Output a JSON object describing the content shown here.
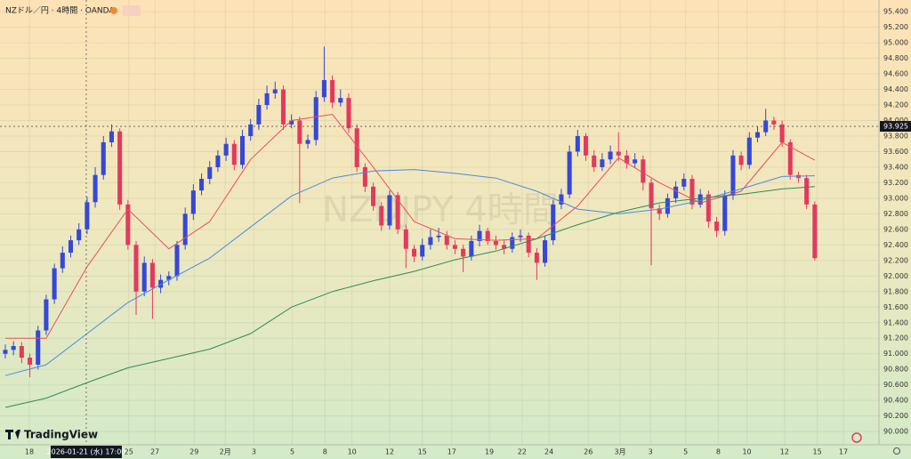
{
  "chart_data": {
    "type": "candlestick",
    "title": "NZドル／円 · 4時間 · OANDA",
    "watermark": "NZDJPY 4時間",
    "brand": "TradingView",
    "up_color": "#3548d6",
    "down_color": "#e23a5f",
    "open": [
      91.0,
      91.05,
      91.1,
      90.95,
      90.86,
      91.3,
      91.7,
      92.1,
      92.3,
      92.46,
      92.6,
      92.95,
      93.3,
      93.72,
      93.86,
      92.92,
      92.4,
      91.8,
      92.17,
      91.85,
      91.95,
      92.0,
      92.4,
      92.8,
      93.1,
      93.25,
      93.4,
      93.55,
      93.7,
      93.43,
      93.8,
      93.95,
      94.2,
      94.35,
      94.4,
      93.95,
      94.0,
      93.7,
      93.75,
      94.3,
      94.52,
      94.23,
      94.29,
      93.9,
      93.4,
      93.15,
      92.9,
      92.65,
      93.04,
      92.6,
      92.35,
      92.25,
      92.4,
      92.5,
      92.52,
      92.4,
      92.35,
      92.25,
      92.45,
      92.58,
      92.45,
      92.4,
      92.35,
      92.5,
      92.52,
      92.3,
      92.17,
      92.46,
      92.92,
      93.05,
      93.6,
      93.8,
      93.55,
      93.4,
      93.5,
      93.6,
      93.55,
      93.45,
      93.5,
      93.2,
      92.87,
      92.8,
      93.0,
      93.15,
      93.25,
      92.92,
      93.05,
      92.7,
      92.58,
      93.04,
      93.55,
      93.43,
      93.78,
      93.85,
      94.0,
      93.95,
      93.72,
      93.3,
      93.26,
      92.92
    ],
    "high": [
      91.12,
      91.16,
      91.15,
      91.0,
      91.36,
      91.76,
      92.16,
      92.38,
      92.52,
      92.68,
      93.02,
      93.4,
      93.8,
      93.95,
      93.9,
      92.98,
      92.45,
      92.25,
      92.22,
      92.02,
      92.06,
      92.45,
      92.88,
      93.18,
      93.32,
      93.48,
      93.62,
      93.78,
      93.75,
      93.88,
      94.02,
      94.28,
      94.45,
      94.5,
      94.45,
      94.08,
      94.05,
      93.82,
      94.38,
      94.95,
      94.58,
      94.4,
      94.35,
      93.95,
      93.45,
      93.2,
      92.95,
      93.1,
      93.08,
      92.66,
      92.4,
      92.48,
      92.6,
      92.62,
      92.58,
      92.46,
      92.4,
      92.52,
      92.66,
      92.62,
      92.52,
      92.46,
      92.56,
      92.6,
      92.56,
      92.36,
      92.52,
      92.98,
      93.12,
      93.68,
      93.88,
      93.84,
      93.62,
      93.58,
      93.68,
      93.85,
      93.62,
      93.58,
      93.55,
      93.25,
      92.92,
      93.06,
      93.22,
      93.32,
      93.3,
      93.12,
      93.1,
      92.76,
      93.1,
      93.62,
      93.6,
      93.85,
      93.92,
      94.15,
      94.05,
      94.0,
      93.76,
      93.34,
      93.3,
      92.96
    ],
    "low": [
      90.94,
      90.98,
      90.88,
      90.7,
      90.8,
      91.24,
      91.64,
      92.04,
      92.24,
      92.4,
      92.54,
      92.88,
      93.24,
      93.66,
      92.85,
      92.34,
      91.5,
      91.74,
      91.45,
      91.78,
      91.88,
      91.94,
      92.34,
      92.72,
      93.04,
      93.18,
      93.34,
      93.48,
      93.36,
      93.38,
      93.74,
      93.88,
      94.14,
      94.28,
      93.88,
      93.9,
      92.94,
      93.64,
      93.68,
      94.24,
      94.16,
      94.18,
      93.84,
      93.34,
      93.08,
      92.84,
      92.58,
      92.6,
      92.54,
      92.1,
      92.18,
      92.2,
      92.34,
      92.44,
      92.34,
      92.28,
      92.05,
      92.2,
      92.38,
      92.4,
      92.34,
      92.28,
      92.3,
      92.44,
      92.24,
      91.95,
      92.12,
      92.4,
      92.86,
      93.0,
      93.54,
      93.48,
      93.34,
      93.35,
      93.44,
      93.48,
      93.38,
      93.4,
      93.1,
      92.14,
      92.72,
      92.75,
      92.94,
      93.1,
      92.86,
      92.88,
      92.62,
      92.5,
      92.52,
      92.98,
      93.36,
      93.38,
      93.72,
      93.8,
      93.88,
      93.66,
      93.24,
      93.2,
      92.86,
      92.2
    ],
    "close": [
      91.05,
      91.1,
      90.95,
      90.86,
      91.3,
      91.7,
      92.1,
      92.3,
      92.46,
      92.6,
      92.95,
      93.3,
      93.72,
      93.86,
      92.92,
      92.4,
      91.8,
      92.17,
      91.85,
      91.95,
      92.0,
      92.4,
      92.8,
      93.1,
      93.25,
      93.4,
      93.55,
      93.7,
      93.43,
      93.8,
      93.95,
      94.2,
      94.35,
      94.4,
      93.95,
      94.0,
      93.7,
      93.75,
      94.3,
      94.52,
      94.23,
      94.29,
      93.9,
      93.4,
      93.15,
      92.9,
      92.65,
      93.04,
      92.6,
      92.35,
      92.25,
      92.4,
      92.5,
      92.52,
      92.4,
      92.35,
      92.25,
      92.45,
      92.58,
      92.45,
      92.4,
      92.35,
      92.5,
      92.52,
      92.3,
      92.17,
      92.46,
      92.92,
      93.05,
      93.6,
      93.8,
      93.55,
      93.4,
      93.5,
      93.6,
      93.55,
      93.45,
      93.5,
      93.2,
      92.87,
      92.8,
      93.0,
      93.15,
      93.25,
      92.92,
      93.05,
      92.7,
      92.58,
      93.04,
      93.55,
      93.43,
      93.78,
      93.85,
      94.0,
      93.95,
      93.72,
      93.3,
      93.26,
      92.92,
      92.23
    ],
    "series": [
      {
        "color": "#e8505b",
        "x": [
          0,
          5,
          10,
          15,
          20,
          25,
          30,
          35,
          40,
          45,
          50,
          55,
          60,
          65,
          70,
          75,
          80,
          85,
          90,
          95,
          99
        ],
        "values": [
          91.2,
          91.2,
          92.12,
          92.86,
          92.35,
          92.7,
          93.5,
          94.0,
          94.08,
          93.4,
          92.7,
          92.48,
          92.46,
          92.48,
          92.9,
          93.52,
          93.2,
          92.94,
          93.09,
          93.72,
          93.49
        ]
      },
      {
        "color": "#4a8be0",
        "x": [
          0,
          5,
          10,
          15,
          20,
          25,
          30,
          35,
          40,
          45,
          50,
          55,
          60,
          65,
          70,
          75,
          80,
          85,
          90,
          95,
          99
        ],
        "values": [
          90.72,
          90.86,
          91.26,
          91.66,
          91.95,
          92.23,
          92.63,
          93.03,
          93.26,
          93.35,
          93.37,
          93.32,
          93.26,
          93.09,
          92.86,
          92.8,
          92.86,
          92.97,
          93.12,
          93.28,
          93.29
        ]
      },
      {
        "color": "#2e8b57",
        "x": [
          0,
          5,
          10,
          15,
          20,
          25,
          30,
          35,
          40,
          45,
          50,
          55,
          60,
          65,
          70,
          75,
          80,
          85,
          90,
          95,
          99
        ],
        "values": [
          90.31,
          90.43,
          90.63,
          90.82,
          90.94,
          91.06,
          91.26,
          91.6,
          91.8,
          91.94,
          92.06,
          92.21,
          92.32,
          92.48,
          92.66,
          92.82,
          92.94,
          93.0,
          93.05,
          93.12,
          93.15
        ]
      }
    ],
    "xlim": [
      -0.65,
      106.85
    ],
    "ylim": [
      89.83,
      95.55
    ],
    "grid": true,
    "xticks": [
      {
        "value": 2.94,
        "label": "18"
      },
      {
        "value": 15.1,
        "label": "25"
      },
      {
        "value": 18.3,
        "label": "27"
      },
      {
        "value": 23.1,
        "label": "29"
      },
      {
        "value": 26.9,
        "label": "2月"
      },
      {
        "value": 30.4,
        "label": "3"
      },
      {
        "value": 35.1,
        "label": "5"
      },
      {
        "value": 39.1,
        "label": "8"
      },
      {
        "value": 42.4,
        "label": "10"
      },
      {
        "value": 47.0,
        "label": "12"
      },
      {
        "value": 51.0,
        "label": "15"
      },
      {
        "value": 54.6,
        "label": "17"
      },
      {
        "value": 59.2,
        "label": "19"
      },
      {
        "value": 63.2,
        "label": "22"
      },
      {
        "value": 66.5,
        "label": "24"
      },
      {
        "value": 71.3,
        "label": "26"
      },
      {
        "value": 75.2,
        "label": "3月"
      },
      {
        "value": 78.9,
        "label": "3"
      },
      {
        "value": 83.2,
        "label": "5"
      },
      {
        "value": 87.2,
        "label": "8"
      },
      {
        "value": 90.7,
        "label": "10"
      },
      {
        "value": 95.3,
        "label": "12"
      },
      {
        "value": 99.3,
        "label": "15"
      },
      {
        "value": 102.5,
        "label": "17"
      }
    ],
    "yticks": [
      {
        "value": 90.0,
        "label": "90.000"
      },
      {
        "value": 90.2,
        "label": "90.200"
      },
      {
        "value": 90.4,
        "label": "90.400"
      },
      {
        "value": 90.6,
        "label": "90.600"
      },
      {
        "value": 90.8,
        "label": "90.800"
      },
      {
        "value": 91.0,
        "label": "91.000"
      },
      {
        "value": 91.2,
        "label": "91.200"
      },
      {
        "value": 91.4,
        "label": "91.400"
      },
      {
        "value": 91.6,
        "label": "91.600"
      },
      {
        "value": 91.8,
        "label": "91.800"
      },
      {
        "value": 92.0,
        "label": "92.000"
      },
      {
        "value": 92.2,
        "label": "92.200"
      },
      {
        "value": 92.4,
        "label": "92.400"
      },
      {
        "value": 92.6,
        "label": "92.600"
      },
      {
        "value": 92.8,
        "label": "92.800"
      },
      {
        "value": 93.0,
        "label": "93.000"
      },
      {
        "value": 93.2,
        "label": "93.200"
      },
      {
        "value": 93.4,
        "label": "93.400"
      },
      {
        "value": 93.6,
        "label": "93.600"
      },
      {
        "value": 93.8,
        "label": "93.800"
      },
      {
        "value": 94.0,
        "label": "94.000"
      },
      {
        "value": 94.2,
        "label": "94.200"
      },
      {
        "value": 94.4,
        "label": "94.400"
      },
      {
        "value": 94.6,
        "label": "94.600"
      },
      {
        "value": 94.8,
        "label": "94.800"
      },
      {
        "value": 95.0,
        "label": "95.000"
      },
      {
        "value": 95.2,
        "label": "95.200"
      },
      {
        "value": 95.4,
        "label": "95.400"
      }
    ],
    "crosshair": {
      "x": 9.9,
      "y": 93.925,
      "x_label": "2026-01-21 (水)  17:00",
      "y_label": "93.925"
    }
  }
}
